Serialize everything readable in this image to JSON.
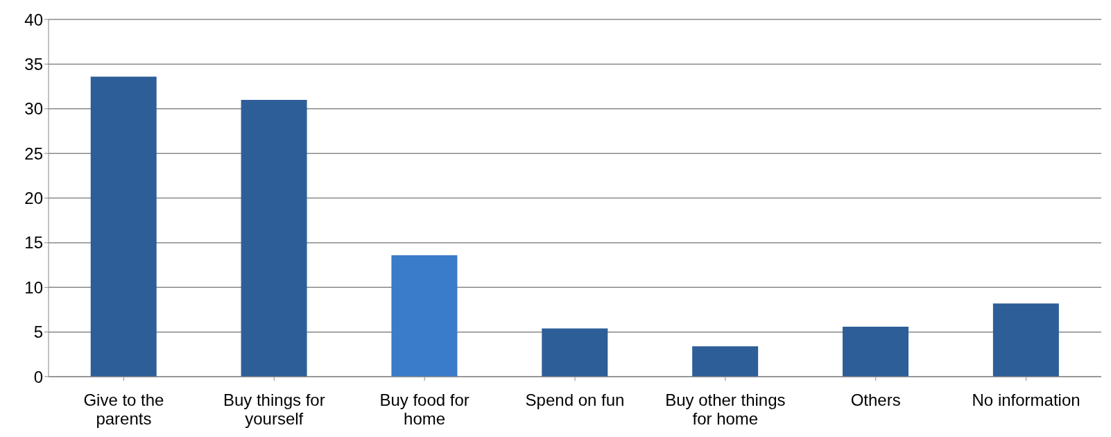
{
  "chart_data": {
    "type": "bar",
    "categories": [
      "Give to the parents",
      "Buy things for yourself",
      "Buy food for home",
      "Spend on fun",
      "Buy other things for home",
      "Others",
      "No information"
    ],
    "values": [
      33.6,
      31.0,
      13.6,
      5.4,
      3.4,
      5.6,
      8.2
    ],
    "colors": [
      "#2d5e98",
      "#2d5e98",
      "#3a7bca",
      "#2d5e98",
      "#2d5e98",
      "#2d5e98",
      "#2d5e98"
    ],
    "ylim": [
      0,
      40
    ],
    "yticks": [
      0,
      5,
      10,
      15,
      20,
      25,
      30,
      35,
      40
    ],
    "grid": "y"
  }
}
